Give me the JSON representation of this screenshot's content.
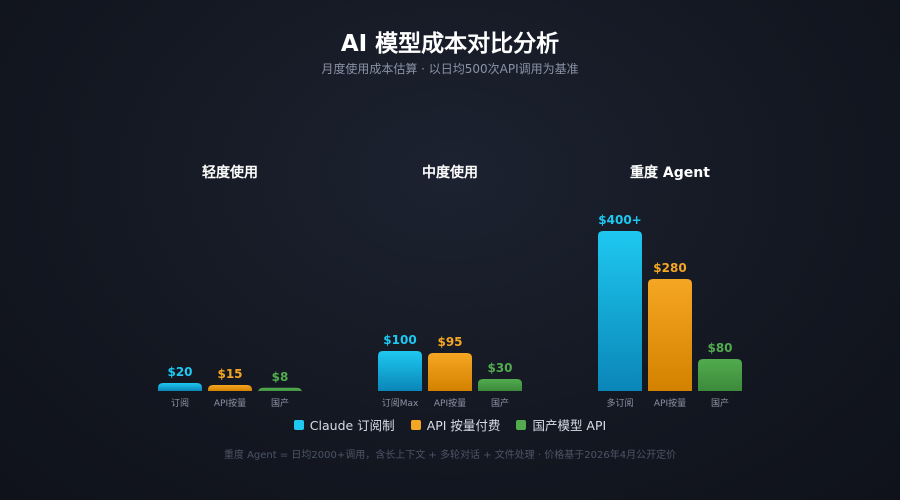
{
  "header": {
    "title": "AI 模型成本对比分析",
    "subtitle": "月度使用成本估算 · 以日均500次API调用为基准"
  },
  "colors": {
    "subscription": "#1ec8f0",
    "api": "#f5a623",
    "domestic": "#52ab4e"
  },
  "legend": [
    {
      "key": "subscription",
      "label": "Claude 订阅制"
    },
    {
      "key": "api",
      "label": "API 按量付费"
    },
    {
      "key": "domestic",
      "label": "国产模型 API"
    }
  ],
  "footnote": "重度 Agent = 日均2000+调用，含长上下文 + 多轮对话 + 文件处理 · 价格基于2026年4月公开定价",
  "chart_data": {
    "type": "bar",
    "groups": [
      {
        "title": "轻度使用",
        "bars": [
          {
            "series": "subscription",
            "category": "订阅",
            "value": 20,
            "label": "$20"
          },
          {
            "series": "api",
            "category": "API按量",
            "value": 15,
            "label": "$15"
          },
          {
            "series": "domestic",
            "category": "国产",
            "value": 8,
            "label": "$8"
          }
        ]
      },
      {
        "title": "中度使用",
        "bars": [
          {
            "series": "subscription",
            "category": "订阅Max",
            "value": 100,
            "label": "$100"
          },
          {
            "series": "api",
            "category": "API按量",
            "value": 95,
            "label": "$95"
          },
          {
            "series": "domestic",
            "category": "国产",
            "value": 30,
            "label": "$30"
          }
        ]
      },
      {
        "title": "重度 Agent",
        "bars": [
          {
            "series": "subscription",
            "category": "多订阅",
            "value": 400,
            "label": "$400+"
          },
          {
            "series": "api",
            "category": "API按量",
            "value": 280,
            "label": "$280"
          },
          {
            "series": "domestic",
            "category": "国产",
            "value": 80,
            "label": "$80"
          }
        ]
      }
    ]
  }
}
